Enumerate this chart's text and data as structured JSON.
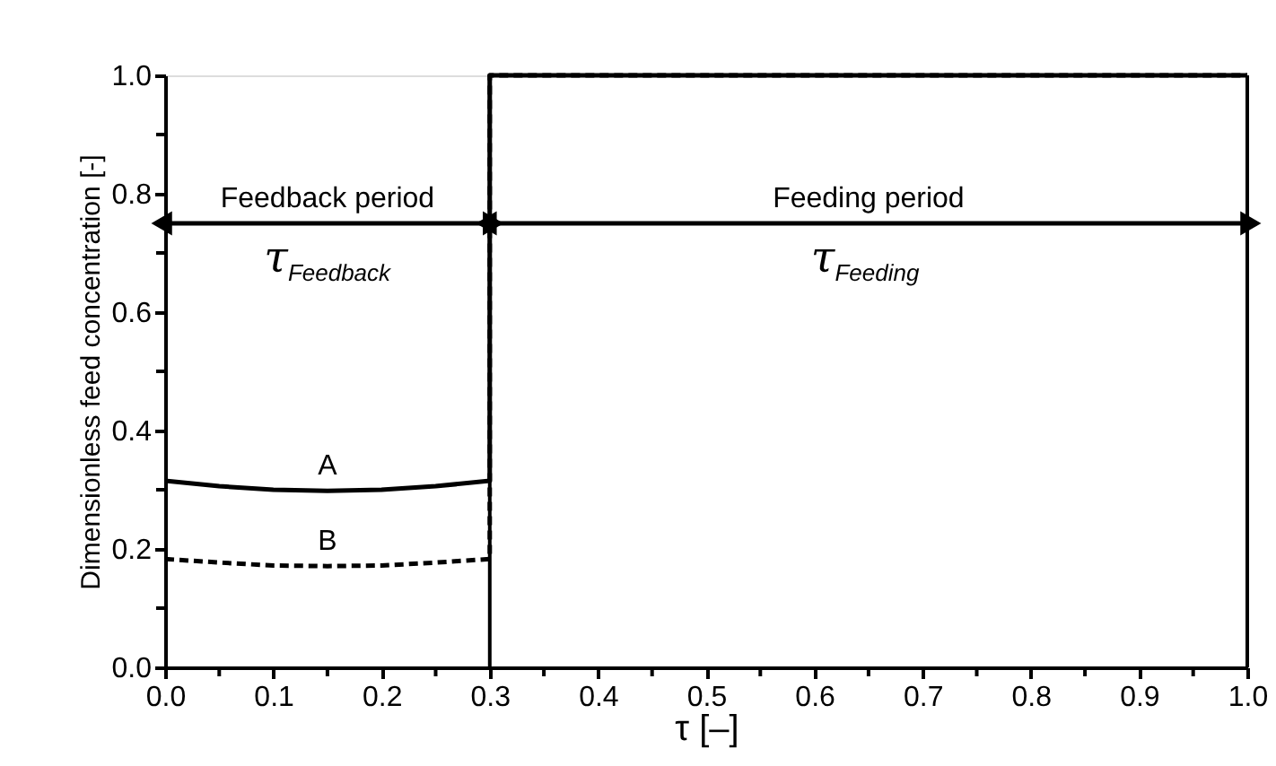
{
  "chart_data": {
    "type": "line",
    "xlabel": "τ [–]",
    "ylabel": "Dimensionless feed concentration [-]",
    "xlim": [
      0,
      1
    ],
    "ylim": [
      0,
      1
    ],
    "xticks": [
      {
        "value": 0,
        "label": "0.0"
      },
      {
        "value": 0.05,
        "label": null
      },
      0.1,
      {
        "value": 0.15,
        "label": null
      },
      0.2,
      {
        "value": 0.25,
        "label": null
      },
      0.3,
      {
        "value": 0.35,
        "label": null
      },
      0.4,
      {
        "value": 0.45,
        "label": null
      },
      0.5,
      {
        "value": 0.55,
        "label": null
      },
      0.6,
      {
        "value": 0.65,
        "label": null
      },
      0.7,
      {
        "value": 0.75,
        "label": null
      },
      0.8,
      {
        "value": 0.85,
        "label": null
      },
      0.9,
      {
        "value": 0.95,
        "label": null
      },
      {
        "value": 1,
        "label": "1.0"
      }
    ],
    "yticks": [
      {
        "value": 0,
        "label": "0.0"
      },
      {
        "value": 0.1,
        "label": null
      },
      0.2,
      {
        "value": 0.3,
        "label": null
      },
      0.4,
      {
        "value": 0.5,
        "label": null
      },
      0.6,
      {
        "value": 0.7,
        "label": null
      },
      0.8,
      {
        "value": 0.9,
        "label": null
      },
      {
        "value": 1,
        "label": "1.0"
      }
    ],
    "grid": false,
    "marker": "none",
    "series": [
      {
        "name": "A",
        "color": "#000000",
        "line_style": "solid",
        "x": [
          0,
          0.05,
          0.1,
          0.15,
          0.2,
          0.25,
          0.3,
          0.3,
          1.0
        ],
        "values": [
          0.315,
          0.306,
          0.3,
          0.298,
          0.3,
          0.306,
          0.315,
          1.0,
          1.0
        ]
      },
      {
        "name": "B",
        "color": "#000000",
        "line_style": "dashed",
        "x": [
          0,
          0.05,
          0.1,
          0.15,
          0.2,
          0.25,
          0.3,
          0.3,
          1.0
        ],
        "values": [
          0.183,
          0.177,
          0.172,
          0.171,
          0.172,
          0.177,
          0.183,
          1.0,
          1.0
        ]
      }
    ],
    "ref_lines": [
      {
        "axis": "x",
        "value": 0.3,
        "color": "#000000",
        "line_style": "solid"
      }
    ],
    "annotations": [
      "Feedback period",
      "τ$_{Feedback}$",
      "Feeding period",
      "τ$_{Feeding}$"
    ]
  }
}
